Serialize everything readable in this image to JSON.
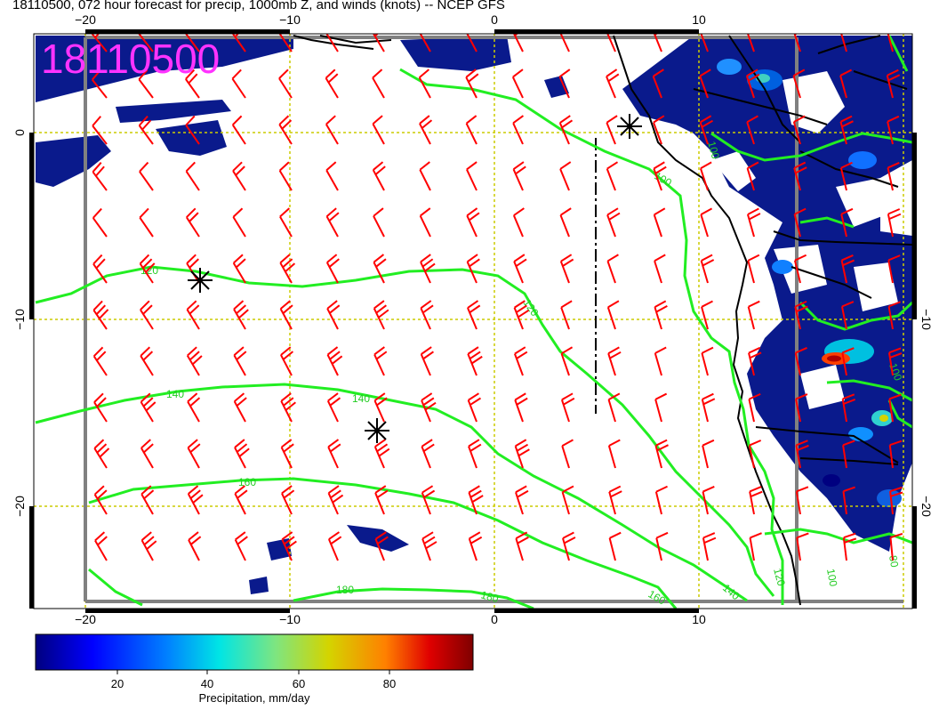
{
  "title": "18110500, 072 hour forecast for precip, 1000mb Z, and winds (knots) -- NCEP GFS",
  "stamp": "18110500",
  "axes": {
    "top_x_labels": [
      "−20",
      "−10",
      "0",
      "10"
    ],
    "bottom_x_labels": [
      "−20",
      "−10",
      "0",
      "10"
    ],
    "left_y_labels": [
      "0",
      "−10",
      "−20"
    ],
    "right_y_labels": [
      "−10",
      "−20"
    ]
  },
  "contours": {
    "color": "#22ee22",
    "labels": [
      "120",
      "120",
      "140",
      "140",
      "160",
      "160",
      "180",
      "180",
      "140",
      "120",
      "100",
      "100",
      "100",
      "100",
      "80"
    ]
  },
  "colorbar": {
    "ticks": [
      "20",
      "40",
      "60",
      "80"
    ],
    "title": "Precipitation, mm/day",
    "stops": [
      "#00007f",
      "#0000ff",
      "#0080ff",
      "#00e5e5",
      "#7fe57f",
      "#d4d400",
      "#ff8000",
      "#e00000",
      "#7f0000"
    ]
  },
  "colors": {
    "barb": "#ff0000",
    "grid": "#cccc00",
    "precip_light": "#0a1a8c",
    "coast": "#000000",
    "frame": "#808080"
  }
}
